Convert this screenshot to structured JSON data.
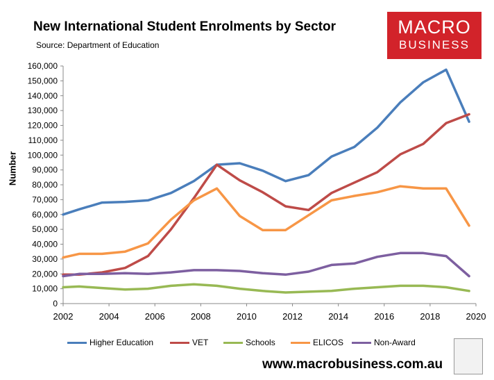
{
  "header": {
    "title": "New International Student Enrolments by Sector",
    "subtitle": "Source: Department of Education"
  },
  "logo": {
    "line1": "MACRO",
    "line2": "BUSINESS",
    "color": "#d2232a"
  },
  "footer": {
    "website": "www.macrobusiness.com.au"
  },
  "chart_data": {
    "type": "line",
    "title": "New International Student Enrolments by Sector",
    "ylabel": "Number",
    "xlabel": "",
    "xlim": [
      2002,
      2020
    ],
    "ylim": [
      0,
      160000
    ],
    "x_ticks": [
      2002,
      2004,
      2006,
      2008,
      2010,
      2012,
      2014,
      2016,
      2018,
      2020
    ],
    "y_ticks": [
      0,
      10000,
      20000,
      30000,
      40000,
      50000,
      60000,
      70000,
      80000,
      90000,
      100000,
      110000,
      120000,
      130000,
      140000,
      150000,
      160000
    ],
    "y_tick_labels": [
      "0",
      "10,000",
      "20,000",
      "30,000",
      "40,000",
      "50,000",
      "60,000",
      "70,000",
      "80,000",
      "90,000",
      "100,000",
      "110,000",
      "120,000",
      "130,000",
      "140,000",
      "150,000",
      "160,000"
    ],
    "grid": false,
    "legend": "bottom",
    "x": [
      2002,
      2002.7,
      2003.7,
      2004.7,
      2005.7,
      2006.7,
      2007.7,
      2008.7,
      2009.7,
      2010.7,
      2011.7,
      2012.7,
      2013.7,
      2014.7,
      2015.7,
      2016.7,
      2017.7,
      2018.7,
      2019.7
    ],
    "series": [
      {
        "name": "Higher Education",
        "color": "#4a7ebb",
        "values": [
          60000,
          63500,
          68000,
          68500,
          69500,
          74500,
          82500,
          93500,
          94500,
          89500,
          82500,
          86500,
          99000,
          105500,
          118500,
          135500,
          149000,
          157500,
          122500
        ]
      },
      {
        "name": "VET",
        "color": "#be4b48",
        "values": [
          19500,
          19500,
          21000,
          24000,
          32000,
          50000,
          71000,
          93500,
          83000,
          75000,
          65500,
          63000,
          74500,
          81500,
          88500,
          100500,
          107500,
          121500,
          127500
        ]
      },
      {
        "name": "Schools",
        "color": "#98b954",
        "values": [
          11000,
          11500,
          10500,
          9500,
          10000,
          12000,
          13000,
          12000,
          10000,
          8500,
          7500,
          8000,
          8500,
          10000,
          11000,
          12000,
          12000,
          11000,
          8500
        ]
      },
      {
        "name": "ELICOS",
        "color": "#f79646",
        "values": [
          31000,
          33500,
          33500,
          35000,
          40500,
          56500,
          69500,
          77500,
          59000,
          49500,
          49500,
          59500,
          69500,
          72500,
          75000,
          79000,
          77500,
          77500,
          52500
        ]
      },
      {
        "name": "Non-Award",
        "color": "#7d5fa0",
        "values": [
          18500,
          20000,
          20000,
          20500,
          20000,
          21000,
          22500,
          22500,
          22000,
          20500,
          19500,
          21500,
          26000,
          27000,
          31500,
          34000,
          34000,
          32000,
          18500
        ]
      }
    ]
  }
}
